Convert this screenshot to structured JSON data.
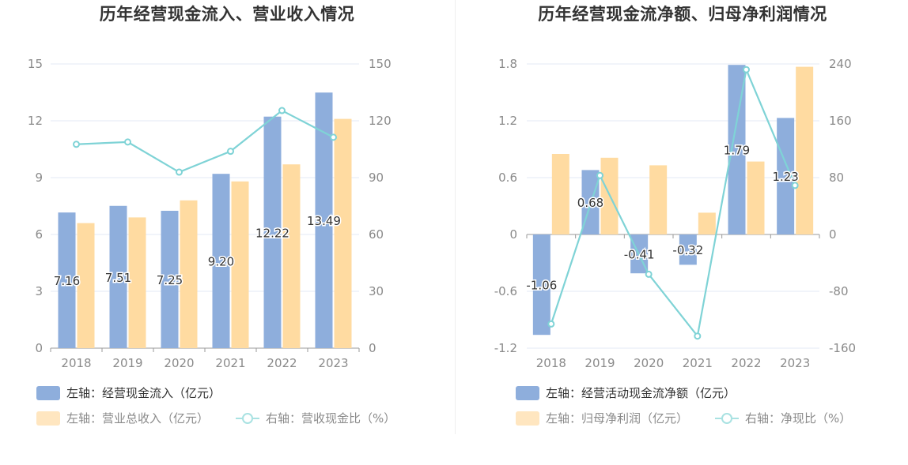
{
  "colors": {
    "bar1": "#8eaedc",
    "bar2": "#ffdba1",
    "line": "#7fd3d6",
    "grid": "#e3e8f4",
    "axis": "#9a9a9a"
  },
  "chart_data": [
    {
      "type": "bar",
      "title": "历年经营现金流入、营业收入情况",
      "categories": [
        "2018",
        "2019",
        "2020",
        "2021",
        "2022",
        "2023"
      ],
      "left_axis": {
        "ticks": [
          "0",
          "3",
          "6",
          "9",
          "12",
          "15"
        ],
        "ylim": [
          0,
          15
        ]
      },
      "right_axis": {
        "ticks": [
          "0",
          "30",
          "60",
          "90",
          "120",
          "150"
        ],
        "ylim": [
          0,
          150
        ]
      },
      "series": [
        {
          "name": "左轴：经营现金流入（亿元）",
          "type": "bar",
          "axis": "left",
          "values": [
            7.16,
            7.51,
            7.25,
            9.2,
            12.22,
            13.49
          ],
          "labels": [
            "7.16",
            "7.51",
            "7.25",
            "9.20",
            "12.22",
            "13.49"
          ]
        },
        {
          "name": "左轴：营业总收入（亿元）",
          "type": "bar",
          "axis": "left",
          "values": [
            6.6,
            6.9,
            7.8,
            8.8,
            9.7,
            12.1
          ]
        },
        {
          "name": "右轴：营收现金比（%）",
          "type": "line",
          "axis": "right",
          "values": [
            107.6,
            108.8,
            92.9,
            103.9,
            125.4,
            111.3
          ]
        }
      ]
    },
    {
      "type": "bar",
      "title": "历年经营现金流净额、归母净利润情况",
      "categories": [
        "2018",
        "2019",
        "2020",
        "2021",
        "2022",
        "2023"
      ],
      "left_axis": {
        "ticks": [
          "-1.2",
          "-0.6",
          "0",
          "0.6",
          "1.2",
          "1.8"
        ],
        "ylim": [
          -1.2,
          1.8
        ]
      },
      "right_axis": {
        "ticks": [
          "-160",
          "-80",
          "0",
          "80",
          "160",
          "240"
        ],
        "ylim": [
          -160,
          240
        ]
      },
      "series": [
        {
          "name": "左轴：经营活动现金流净额（亿元）",
          "type": "bar",
          "axis": "left",
          "values": [
            -1.06,
            0.68,
            -0.41,
            -0.32,
            1.79,
            1.23
          ],
          "labels": [
            "-1.06",
            "0.68",
            "-0.41",
            "-0.32",
            "1.79",
            "1.23"
          ]
        },
        {
          "name": "左轴：归母净利润（亿元）",
          "type": "bar",
          "axis": "left",
          "values": [
            0.85,
            0.81,
            0.73,
            0.23,
            0.77,
            1.77
          ]
        },
        {
          "name": "右轴：净现比（%）",
          "type": "line",
          "axis": "right",
          "values": [
            -126,
            83,
            -56,
            -143,
            232,
            69
          ]
        }
      ]
    }
  ]
}
